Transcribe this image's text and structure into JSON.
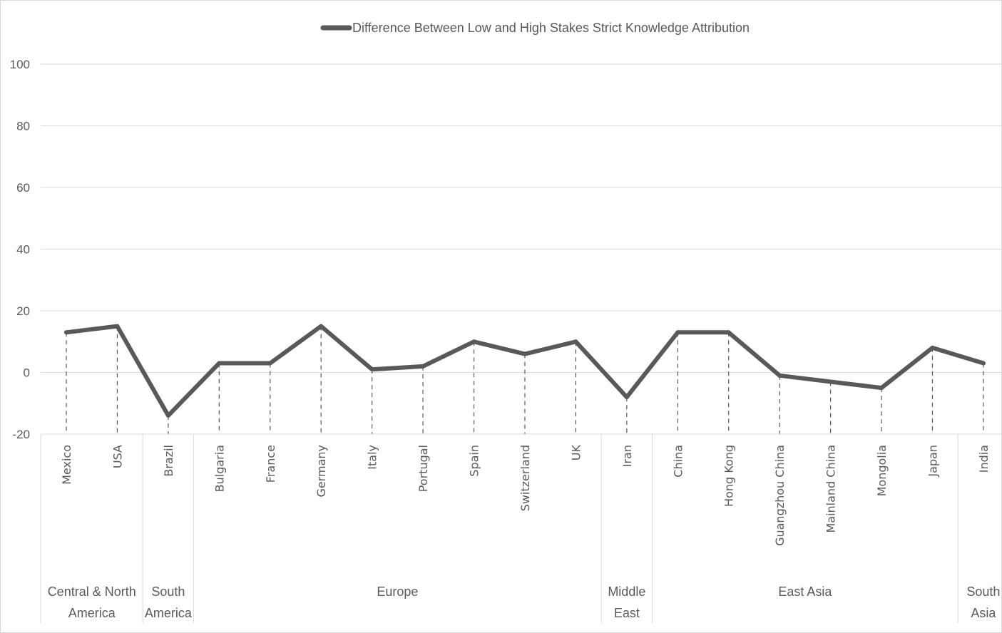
{
  "chart_data": {
    "type": "line",
    "categories": [
      "Mexico",
      "USA",
      "Brazil",
      "Bulgaria",
      "France",
      "Germany",
      "Italy",
      "Portugal",
      "Spain",
      "Switzerland",
      "UK",
      "Iran",
      "China",
      "Hong Kong",
      "Guangzhou China",
      "Mainland China",
      "Mongolia",
      "Japan",
      "India"
    ],
    "groups": [
      {
        "label": [
          "Central & North",
          "America"
        ],
        "count": 2
      },
      {
        "label": [
          "South",
          "America"
        ],
        "count": 1
      },
      {
        "label": [
          "Europe"
        ],
        "count": 8
      },
      {
        "label": [
          "Middle",
          "East"
        ],
        "count": 1
      },
      {
        "label": [
          "East Asia"
        ],
        "count": 6
      },
      {
        "label": [
          "South",
          "Asia"
        ],
        "count": 1
      }
    ],
    "series": [
      {
        "name": "Difference Between Low and High Stakes Strict Knowledge Attribution",
        "values": [
          13,
          15,
          -14,
          3,
          3,
          15,
          1,
          2,
          10,
          6,
          10,
          -8,
          13,
          13,
          -1,
          -3,
          -5,
          8,
          3
        ]
      }
    ],
    "ylim": [
      -20,
      100
    ],
    "yticks": [
      -20,
      0,
      20,
      40,
      60,
      80,
      100
    ],
    "grid": true,
    "drop_lines": true,
    "legend_position": "top",
    "colors": {
      "line": "#595959",
      "grid": "#d9d9d9",
      "text": "#595959",
      "drop": "#595959"
    }
  }
}
